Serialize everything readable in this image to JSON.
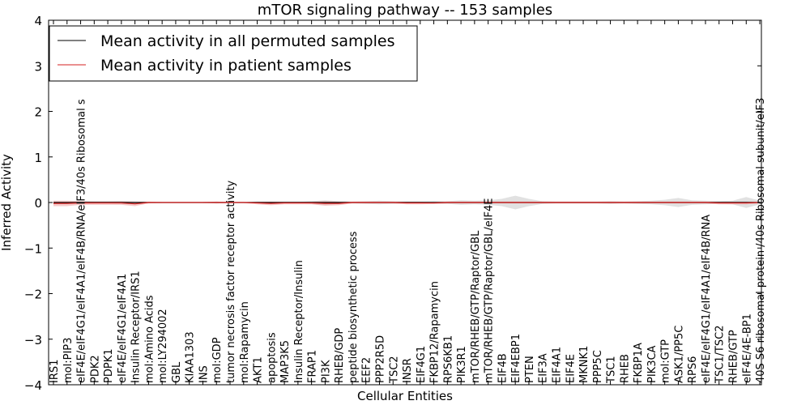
{
  "chart_data": {
    "type": "line",
    "title": "mTOR signaling pathway -- 153 samples",
    "xlabel": "Cellular Entities",
    "ylabel": "Inferred Activity",
    "ylim": [
      -4,
      4
    ],
    "yticks": [
      -4,
      -3,
      -2,
      -1,
      0,
      1,
      2,
      3,
      4
    ],
    "categories": [
      "IRS1",
      "mol:PIP3",
      "eIF4E/eIF4G1/eIF4A1/eIF4B/RNA/eIF3/40s Ribosomal s",
      "PDK2",
      "PDPK1",
      "eIF4E/eIF4G1/eIF4A1",
      "Insulin Receptor/IRS1",
      "mol:Amino Acids",
      "mol:LY294002",
      "GBL",
      "KIAA1303",
      "INS",
      "mol:GDP",
      "tumor necrosis factor receptor activity",
      "mol:Rapamycin",
      "AKT1",
      "apoptosis",
      "MAP3K5",
      "Insulin Receptor/Insulin",
      "FRAP1",
      "PI3K",
      "RHEB/GDP",
      "peptide biosynthetic process",
      "EEF2",
      "PPP2R5D",
      "TSC2",
      "INSR",
      "EIF4G1",
      "FKBP12/Rapamycin",
      "RPS6KB1",
      "PIK3R1",
      "mTOR/RHEB/GTP/Raptor/GBL",
      "mTOR/RHEB/GTP/Raptor/GBL/eIF4E",
      "EIF4B",
      "EIF4EBP1",
      "PTEN",
      "EIF3A",
      "EIF4A1",
      "EIF4E",
      "MKNK1",
      "PPP5C",
      "TSC1",
      "RHEB",
      "FKBP1A",
      "PIK3CA",
      "mol:GTP",
      "ASK1/PP5C",
      "RPS6",
      "eIF4E/eIF4G1/eIF4A1/eIF4B/RNA",
      "TSC1/TSC2",
      "RHEB/GTP",
      "eIF4E/4E-BP1",
      "40S S6 ribosomal protein /40s Ribosomal subunit/eIF3"
    ],
    "series": [
      {
        "name": "Mean activity in all permuted samples",
        "color": "#000000",
        "values": [
          0,
          0,
          0,
          0,
          0,
          0,
          0,
          0,
          0,
          0,
          0,
          0,
          0,
          0,
          0,
          0,
          0,
          0,
          0,
          0,
          0,
          0,
          0,
          0,
          0,
          0,
          0,
          0,
          0,
          0,
          0,
          0,
          0,
          0,
          0,
          0,
          0,
          0,
          0,
          0,
          0,
          0,
          0,
          0,
          0,
          0,
          0,
          0,
          0,
          0,
          0,
          0,
          0
        ],
        "band": [
          0.01,
          0.01,
          0.03,
          0.02,
          0.02,
          0.03,
          0.02,
          0.01,
          0.01,
          0.01,
          0.01,
          0.01,
          0.02,
          0.01,
          0.01,
          0.01,
          0.02,
          0.01,
          0.01,
          0.03,
          0.05,
          0.03,
          0.02,
          0.03,
          0.04,
          0.03,
          0.02,
          0.02,
          0.03,
          0.03,
          0.05,
          0.04,
          0.05,
          0.08,
          0.15,
          0.08,
          0.03,
          0.02,
          0.02,
          0.02,
          0.02,
          0.03,
          0.02,
          0.03,
          0.04,
          0.06,
          0.1,
          0.05,
          0.04,
          0.03,
          0.04,
          0.12,
          0.04
        ]
      },
      {
        "name": "Mean activity in patient samples",
        "color": "#d62020",
        "values": [
          -0.02,
          -0.02,
          -0.01,
          -0.01,
          -0.01,
          -0.01,
          -0.03,
          0.0,
          0.0,
          0.0,
          0.0,
          0.0,
          0.0,
          0.0,
          0.0,
          -0.01,
          -0.02,
          -0.01,
          -0.01,
          -0.01,
          -0.02,
          -0.02,
          0.0,
          0.0,
          0.0,
          0.0,
          -0.01,
          -0.01,
          -0.01,
          0.0,
          0.0,
          0.0,
          0.0,
          0.0,
          0.0,
          0.0,
          0.0,
          0.0,
          0.0,
          0.0,
          0.0,
          0.0,
          0.0,
          0.0,
          0.0,
          0.0,
          0.0,
          0.0,
          0.0,
          -0.01,
          -0.01,
          -0.01,
          0.0
        ],
        "band": [
          0.06,
          0.06,
          0.04,
          0.04,
          0.04,
          0.04,
          0.05,
          0.02,
          0.01,
          0.01,
          0.01,
          0.01,
          0.02,
          0.01,
          0.01,
          0.03,
          0.04,
          0.03,
          0.03,
          0.03,
          0.05,
          0.04,
          0.02,
          0.02,
          0.02,
          0.02,
          0.03,
          0.03,
          0.02,
          0.02,
          0.02,
          0.02,
          0.02,
          0.02,
          0.02,
          0.02,
          0.02,
          0.02,
          0.02,
          0.02,
          0.02,
          0.02,
          0.02,
          0.02,
          0.02,
          0.02,
          0.02,
          0.02,
          0.02,
          0.03,
          0.03,
          0.03,
          0.02
        ]
      }
    ],
    "legend_position": "top-left"
  }
}
